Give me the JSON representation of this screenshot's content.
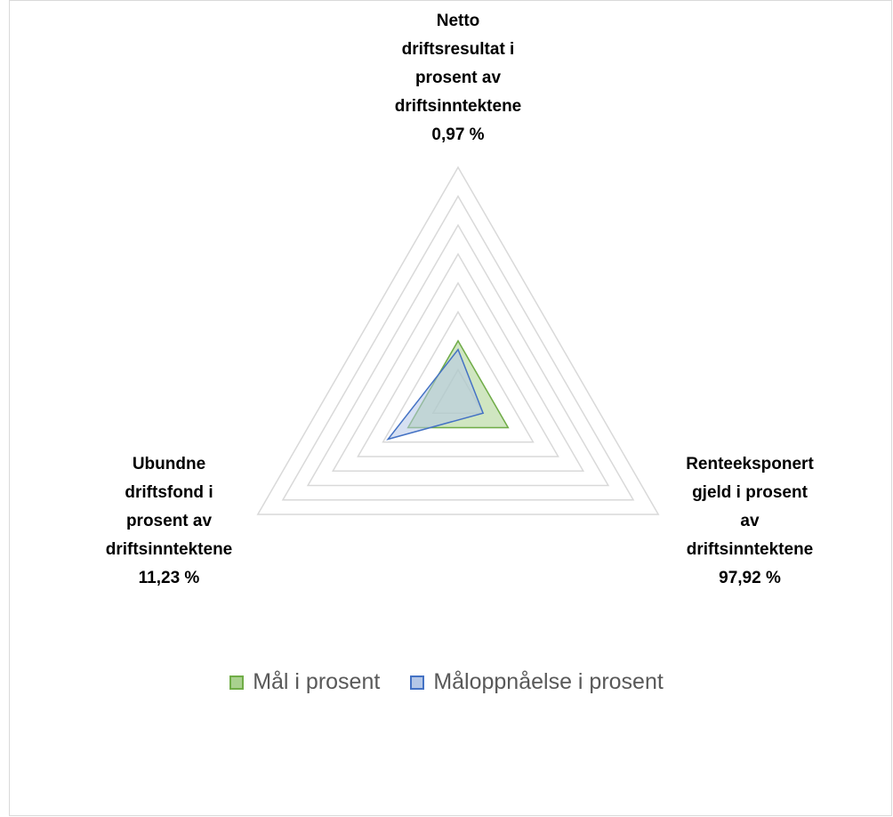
{
  "chart_data": {
    "type": "radar",
    "categories": [
      "Netto\ndriftsresultat i\nprosent av\ndriftsinntektene\n0,97 %",
      "Renteeksponert\ngjeld i prosent\nav\ndriftsinntektene\n97,92 %",
      "Ubundne\ndriftsfond i\nprosent av\ndriftsinntektene\n11,23 %"
    ],
    "series": [
      {
        "name": "Mål i prosent",
        "color": "#70ad47",
        "fill": "#a9d18e",
        "values": [
          2,
          2,
          2
        ]
      },
      {
        "name": "Måloppnåelse i prosent",
        "color": "#4472c4",
        "fill": "#b4c7e7",
        "values": [
          1.7,
          1.0,
          2.8
        ]
      }
    ],
    "rlim": [
      0,
      8
    ],
    "rticks": [
      1,
      2,
      3,
      4,
      5,
      6,
      7,
      8
    ],
    "grid": true,
    "legend": "bottom"
  }
}
